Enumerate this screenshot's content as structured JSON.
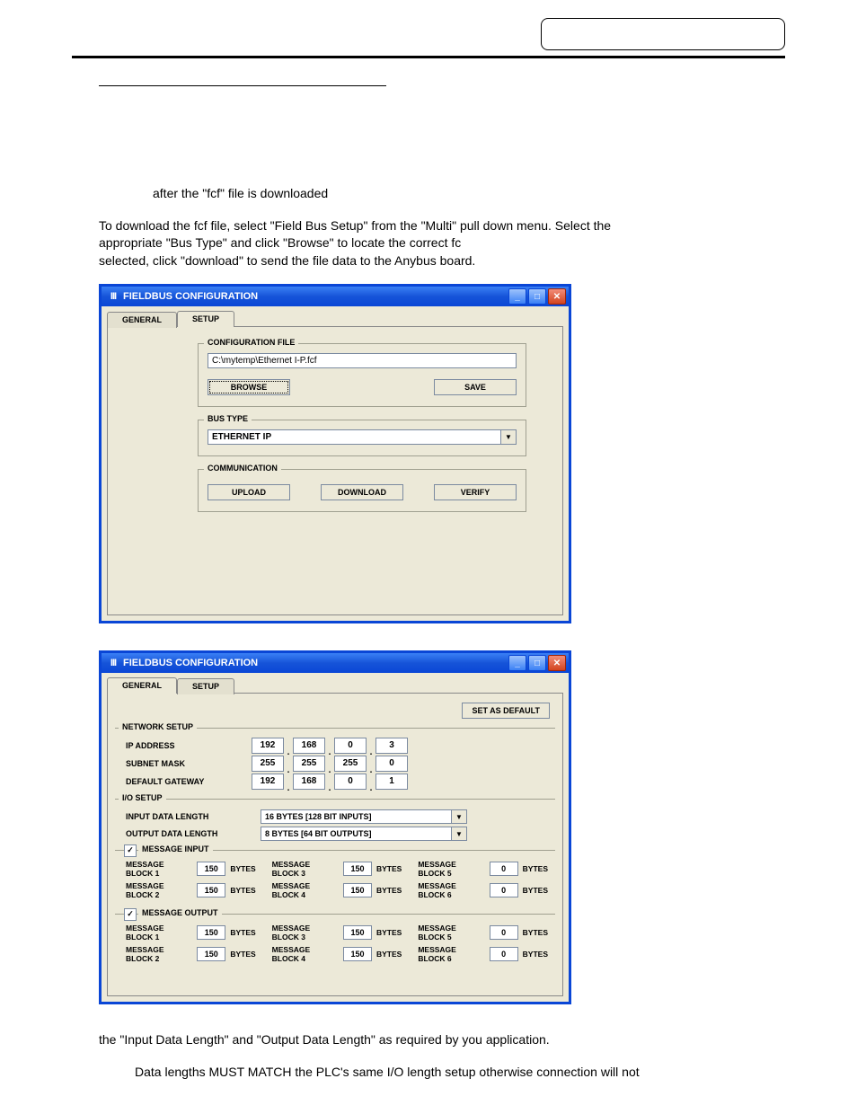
{
  "text": {
    "after_fcf": "after the \"fcf\" file is downloaded",
    "para1a": "To download the fcf file, select \"Field Bus Setup\" from the \"Multi\" pull down menu. Select the",
    "para1b": "appropriate \"Bus Type\" and click \"Browse\" to locate the correct fc",
    "para1c": "selected, click \"download\" to send the file data to the Anybus board.",
    "para2": "the \"Input Data Length\" and \"Output Data Length\" as required by you application.",
    "para3": "Data lengths MUST MATCH the PLC's same I/O length setup otherwise connection will not"
  },
  "win1": {
    "title": "FIELDBUS CONFIGURATION",
    "app_icon": "III",
    "tabs": {
      "general": "GENERAL",
      "setup": "SETUP"
    },
    "config_file": {
      "legend": "CONFIGURATION FILE",
      "path": "C:\\mytemp\\Ethernet I-P.fcf",
      "browse": "BROWSE",
      "save": "SAVE"
    },
    "bus_type": {
      "legend": "BUS TYPE",
      "value": "ETHERNET IP"
    },
    "comm": {
      "legend": "COMMUNICATION",
      "upload": "UPLOAD",
      "download": "DOWNLOAD",
      "verify": "VERIFY"
    }
  },
  "win2": {
    "title": "FIELDBUS CONFIGURATION",
    "app_icon": "III",
    "tabs": {
      "general": "GENERAL",
      "setup": "SETUP"
    },
    "set_default": "SET AS DEFAULT",
    "network": {
      "legend": "NETWORK SETUP",
      "ip_label": "IP ADDRESS",
      "ip": [
        "192",
        "168",
        "0",
        "3"
      ],
      "subnet_label": "SUBNET MASK",
      "subnet": [
        "255",
        "255",
        "255",
        "0"
      ],
      "gw_label": "DEFAULT GATEWAY",
      "gw": [
        "192",
        "168",
        "0",
        "1"
      ]
    },
    "io": {
      "legend": "I/O SETUP",
      "in_label": "INPUT DATA LENGTH",
      "in_val": "16 BYTES [128 BIT INPUTS]",
      "out_label": "OUTPUT DATA LENGTH",
      "out_val": "8 BYTES [64 BIT OUTPUTS]"
    },
    "msg_in": {
      "legend": "MESSAGE INPUT",
      "checked": "✓",
      "rows": [
        {
          "l": "MESSAGE BLOCK 1",
          "v": "150"
        },
        {
          "l": "MESSAGE BLOCK 3",
          "v": "150"
        },
        {
          "l": "MESSAGE BLOCK 5",
          "v": "0"
        },
        {
          "l": "MESSAGE BLOCK 2",
          "v": "150"
        },
        {
          "l": "MESSAGE BLOCK 4",
          "v": "150"
        },
        {
          "l": "MESSAGE BLOCK 6",
          "v": "0"
        }
      ],
      "unit": "BYTES"
    },
    "msg_out": {
      "legend": "MESSAGE OUTPUT",
      "checked": "✓",
      "rows": [
        {
          "l": "MESSAGE BLOCK 1",
          "v": "150"
        },
        {
          "l": "MESSAGE BLOCK 3",
          "v": "150"
        },
        {
          "l": "MESSAGE BLOCK 5",
          "v": "0"
        },
        {
          "l": "MESSAGE BLOCK 2",
          "v": "150"
        },
        {
          "l": "MESSAGE BLOCK 4",
          "v": "150"
        },
        {
          "l": "MESSAGE BLOCK 6",
          "v": "0"
        }
      ],
      "unit": "BYTES"
    }
  }
}
